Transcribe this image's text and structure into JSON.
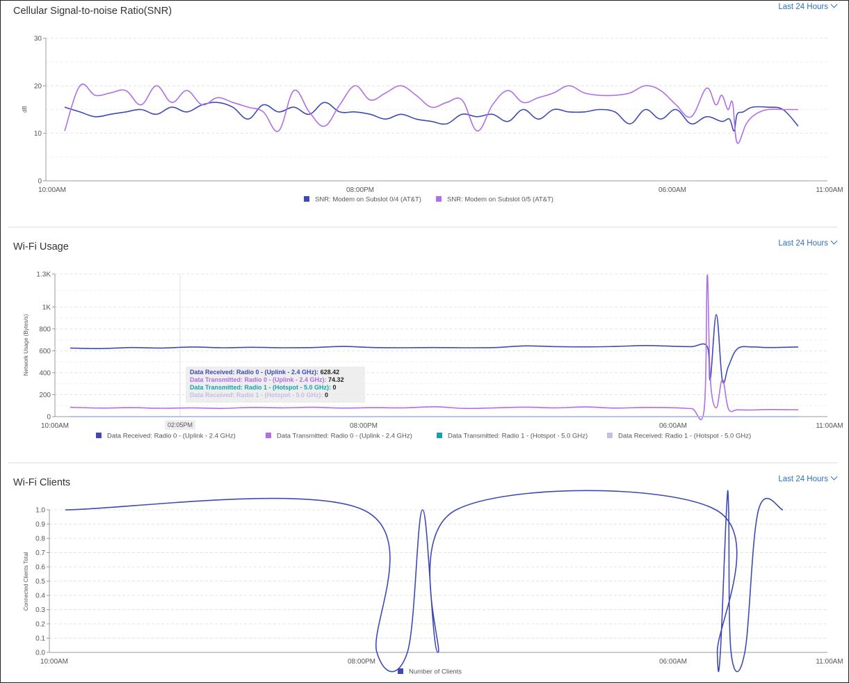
{
  "colors": {
    "blue": "#3f49b4",
    "purple": "#b06ee8",
    "teal": "#15a2b0",
    "lavender": "#c4bfe6",
    "link": "#2f6fc1"
  },
  "snr": {
    "title": "Cellular Signal-to-noise Ratio(SNR)",
    "range": "Last 24 Hours",
    "y_axis_label": "dB",
    "x_ticks": [
      "10:00AM",
      "08:00PM",
      "06:00AM",
      "11:00AM"
    ],
    "y_ticks": [
      "30",
      "20",
      "10",
      "0"
    ],
    "legend": [
      "SNR: Modem on Subslot 0/4 (AT&T)",
      "SNR: Modem on Subslot 0/5 (AT&T)"
    ]
  },
  "wifi_usage": {
    "title": "Wi-Fi Usage",
    "range": "Last 24 Hours",
    "y_axis_label": "Network Usage (Bytes/s)",
    "x_ticks": [
      "10:00AM",
      "08:00PM",
      "06:00AM",
      "11:00AM"
    ],
    "y_ticks": [
      "1.3K",
      "1K",
      "800",
      "600",
      "400",
      "200",
      "0"
    ],
    "legend": [
      "Data Received: Radio 0 - (Uplink - 2.4 GHz)",
      "Data Transmitted: Radio 0 - (Uplink - 2.4 GHz)",
      "Data Transmitted: Radio 1 - (Hotspot - 5.0 GHz)",
      "Data Received: Radio 1 - (Hotspot - 5.0 GHz)"
    ],
    "cursor_time": "02:05PM",
    "tooltip": [
      {
        "label": "Data Received: Radio 0 - (Uplink - 2.4 GHz):",
        "value": "628.42"
      },
      {
        "label": "Data Transmitted: Radio 0 - (Uplink - 2.4 GHz):",
        "value": "74.32"
      },
      {
        "label": "Data Transmitted: Radio 1 - (Hotspot - 5.0 GHz):",
        "value": "0"
      },
      {
        "label": "Data Received: Radio 1 - (Hotspot - 5.0 GHz):",
        "value": "0"
      }
    ]
  },
  "wifi_clients": {
    "title": "Wi-Fi Clients",
    "range": "Last 24 Hours",
    "y_axis_label": "Connected Clients Total",
    "x_ticks": [
      "10:00AM",
      "08:00PM",
      "06:00AM",
      "11:00AM"
    ],
    "y_ticks": [
      "1.0",
      "0.9",
      "0.8",
      "0.7",
      "0.6",
      "0.5",
      "0.4",
      "0.3",
      "0.2",
      "0.1",
      "0.0"
    ],
    "legend": [
      "Number of Clients"
    ]
  },
  "chart_data": [
    {
      "type": "line",
      "title": "Cellular Signal-to-noise Ratio(SNR)",
      "ylabel": "dB",
      "ylim": [
        0,
        30
      ],
      "x_hours": [
        0,
        25
      ],
      "series": [
        {
          "name": "SNR: Modem on Subslot 0/4 (AT&T)",
          "x": [
            0,
            0.5,
            1,
            1.5,
            2,
            2.5,
            3,
            3.5,
            4,
            4.5,
            5,
            5.5,
            6,
            6.5,
            7,
            7.5,
            8,
            8.5,
            9,
            9.5,
            10,
            10.5,
            11,
            11.5,
            12,
            12.5,
            13,
            13.5,
            14,
            14.5,
            15,
            15.5,
            16,
            16.5,
            17,
            17.5,
            18,
            18.5,
            19,
            19.5,
            20,
            20.5,
            21,
            21.5,
            21.75,
            21.9,
            22,
            22.2,
            22.5,
            23,
            23.5,
            24
          ],
          "y": [
            15.5,
            14.5,
            13.5,
            14,
            14.5,
            15,
            14,
            15.5,
            14.5,
            16,
            16.5,
            15.5,
            13,
            16,
            14.5,
            15.5,
            14,
            16.5,
            14.5,
            14.5,
            14,
            13,
            14,
            13,
            12.5,
            12,
            14,
            13.5,
            14,
            12.5,
            15,
            13,
            15,
            14.5,
            14.5,
            15,
            14.5,
            12,
            15,
            13,
            15,
            12,
            13.5,
            12.5,
            13,
            10.5,
            14,
            14.5,
            15.5,
            15.5,
            15,
            11.5
          ]
        },
        {
          "name": "SNR: Modem on Subslot 0/5 (AT&T)",
          "x": [
            0,
            0.5,
            1,
            1.5,
            2,
            2.5,
            3,
            3.5,
            4,
            4.5,
            5,
            5.5,
            6,
            6.5,
            7,
            7.5,
            8,
            8.5,
            9,
            9.5,
            10,
            10.5,
            11,
            11.5,
            12,
            12.5,
            13,
            13.5,
            14,
            14.5,
            15,
            15.5,
            16,
            16.5,
            17,
            17.5,
            18,
            18.5,
            19,
            19.5,
            20,
            20.5,
            21,
            21.3,
            21.5,
            21.7,
            21.85,
            22,
            22.3,
            22.6,
            23,
            23.5,
            24
          ],
          "y": [
            10.5,
            20,
            18,
            18.5,
            19,
            16,
            20,
            16.5,
            19,
            16,
            17.5,
            16.5,
            15.5,
            14.5,
            10.5,
            19,
            14.5,
            11.5,
            16,
            20,
            17,
            18.5,
            20,
            18,
            15.5,
            16.5,
            17,
            10.5,
            16,
            19,
            16.5,
            17.5,
            18.5,
            20,
            18.5,
            18,
            18,
            18.5,
            20,
            19,
            16,
            13.5,
            19.5,
            16,
            18,
            15,
            16.5,
            8,
            12,
            14,
            15,
            15,
            15
          ]
        }
      ]
    },
    {
      "type": "line",
      "title": "Wi-Fi Usage",
      "ylabel": "Network Usage (Bytes/s)",
      "ylim": [
        0,
        1300
      ],
      "x_hours": [
        0,
        25
      ],
      "series": [
        {
          "name": "Data Received: Radio 0 - (Uplink - 2.4 GHz)",
          "x": [
            0,
            1,
            2,
            3,
            4,
            5,
            6,
            7,
            8,
            9,
            10,
            11,
            12,
            13,
            14,
            15,
            16,
            17,
            18,
            19,
            20,
            20.5,
            21,
            21.1,
            21.3,
            21.5,
            21.7,
            22,
            22.5,
            23,
            24
          ],
          "y": [
            625,
            620,
            630,
            625,
            635,
            628,
            632,
            628,
            630,
            640,
            630,
            628,
            630,
            628,
            630,
            645,
            638,
            636,
            640,
            648,
            640,
            638,
            640,
            340,
            930,
            330,
            460,
            620,
            635,
            630,
            635
          ]
        },
        {
          "name": "Data Transmitted: Radio 0 - (Uplink - 2.4 GHz)",
          "x": [
            0,
            1,
            2,
            3,
            4,
            5,
            6,
            7,
            8,
            9,
            10,
            11,
            12,
            13,
            14,
            15,
            16,
            17,
            18,
            19,
            20,
            20.5,
            20.9,
            21.0,
            21.1,
            21.3,
            21.5,
            21.7,
            22,
            22.5,
            23,
            24
          ],
          "y": [
            85,
            78,
            82,
            76,
            80,
            75,
            84,
            80,
            85,
            78,
            82,
            80,
            90,
            75,
            80,
            86,
            80,
            88,
            78,
            84,
            80,
            72,
            70,
            1290,
            350,
            80,
            340,
            70,
            62,
            60,
            65,
            62
          ]
        },
        {
          "name": "Data Transmitted: Radio 1 - (Hotspot - 5.0 GHz)",
          "x": [
            0,
            24
          ],
          "y": [
            0,
            0
          ]
        },
        {
          "name": "Data Received: Radio 1 - (Hotspot - 5.0 GHz)",
          "x": [
            0,
            24
          ],
          "y": [
            0,
            0
          ]
        }
      ]
    },
    {
      "type": "line",
      "title": "Wi-Fi Clients",
      "ylabel": "Connected Clients Total",
      "ylim": [
        0,
        1.0
      ],
      "x_hours": [
        0,
        25
      ],
      "series": [
        {
          "name": "Number of Clients",
          "x": [
            0,
            9.75,
            10.2,
            11.2,
            11.7,
            12.2,
            12.8,
            21.3,
            21.35,
            21.45,
            21.65,
            21.72,
            21.8,
            22.25,
            22.7,
            23.5
          ],
          "y": [
            1,
            1,
            0,
            0,
            1,
            0,
            1,
            1,
            0,
            0,
            1,
            1,
            0,
            0,
            1,
            1
          ]
        }
      ]
    }
  ]
}
